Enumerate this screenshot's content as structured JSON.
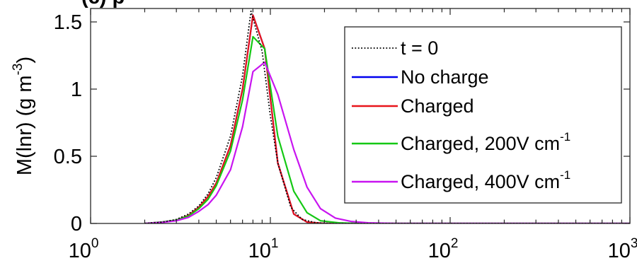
{
  "chart_data": {
    "type": "line",
    "title": "(c)    p",
    "xlabel": "",
    "ylabel": "M(lnr)  (g m",
    "ylabel_sup": "-3",
    "ylabel_close": ")",
    "xscale": "log",
    "xlim": [
      1,
      1000
    ],
    "ylim": [
      0,
      1.6
    ],
    "x_ticks": [
      {
        "value": 1,
        "base": "10",
        "exp": "0"
      },
      {
        "value": 10,
        "base": "10",
        "exp": "1"
      },
      {
        "value": 100,
        "base": "10",
        "exp": "2"
      },
      {
        "value": 1000,
        "base": "10",
        "exp": "3"
      }
    ],
    "y_ticks": [
      {
        "value": 0,
        "label": "0"
      },
      {
        "value": 0.5,
        "label": "0.5"
      },
      {
        "value": 1,
        "label": "1"
      },
      {
        "value": 1.5,
        "label": "1.5"
      }
    ],
    "grid": false,
    "legend_position": "top-right",
    "series": [
      {
        "name": "t = 0",
        "color": "#000000",
        "dash": "dotted",
        "x": [
          2,
          2.5,
          3,
          3.5,
          4,
          4.5,
          5,
          6,
          7,
          7.8,
          9,
          10,
          11,
          13,
          15,
          18,
          22,
          30,
          50,
          100,
          300,
          1000
        ],
        "y": [
          0,
          0.01,
          0.03,
          0.07,
          0.13,
          0.22,
          0.34,
          0.65,
          1.1,
          1.58,
          1.28,
          0.8,
          0.45,
          0.12,
          0.03,
          0.005,
          0,
          0,
          0,
          0,
          0,
          0
        ]
      },
      {
        "name": "No charge",
        "color": "#0000ee",
        "dash": "solid",
        "x": [
          2,
          2.5,
          3,
          3.5,
          4,
          4.5,
          5,
          6,
          7,
          8,
          9.3,
          11,
          13.5,
          16,
          20,
          30,
          50,
          100,
          300,
          1000
        ],
        "y": [
          0,
          0.01,
          0.025,
          0.06,
          0.12,
          0.2,
          0.3,
          0.58,
          1.0,
          1.55,
          1.3,
          0.45,
          0.07,
          0.01,
          0,
          0,
          0,
          0,
          0,
          0
        ]
      },
      {
        "name": "Charged",
        "color": "#e8141a",
        "dash": "solid",
        "x": [
          2,
          2.5,
          3,
          3.5,
          4,
          4.5,
          5,
          6,
          7,
          8,
          9.3,
          11,
          13.5,
          16,
          20,
          30,
          50,
          100,
          300,
          1000
        ],
        "y": [
          0,
          0.01,
          0.025,
          0.06,
          0.12,
          0.2,
          0.3,
          0.58,
          1.0,
          1.55,
          1.3,
          0.45,
          0.07,
          0.01,
          0,
          0,
          0,
          0,
          0,
          0
        ]
      },
      {
        "name": "Charged, 200V cm",
        "name_sup": "-1",
        "color": "#14c814",
        "dash": "solid",
        "x": [
          2,
          2.5,
          3,
          3.5,
          4,
          4.5,
          5,
          6,
          7,
          8,
          9.3,
          11,
          13.5,
          16,
          19,
          24,
          30,
          50,
          100,
          300,
          1000
        ],
        "y": [
          0,
          0.01,
          0.025,
          0.055,
          0.11,
          0.18,
          0.28,
          0.54,
          0.92,
          1.39,
          1.3,
          0.65,
          0.24,
          0.08,
          0.02,
          0.005,
          0,
          0,
          0,
          0,
          0
        ]
      },
      {
        "name": "Charged, 400V cm",
        "name_sup": "-1",
        "color": "#c814f0",
        "dash": "solid",
        "x": [
          2,
          2.5,
          3,
          3.5,
          4,
          4.5,
          5,
          6,
          7,
          8,
          9.3,
          11,
          13.5,
          16,
          19,
          23,
          28,
          35,
          50,
          100,
          300,
          1000
        ],
        "y": [
          0,
          0.008,
          0.02,
          0.045,
          0.09,
          0.14,
          0.21,
          0.4,
          0.72,
          1.13,
          1.2,
          0.96,
          0.55,
          0.27,
          0.11,
          0.04,
          0.015,
          0.005,
          0,
          0,
          0,
          0
        ]
      }
    ]
  }
}
